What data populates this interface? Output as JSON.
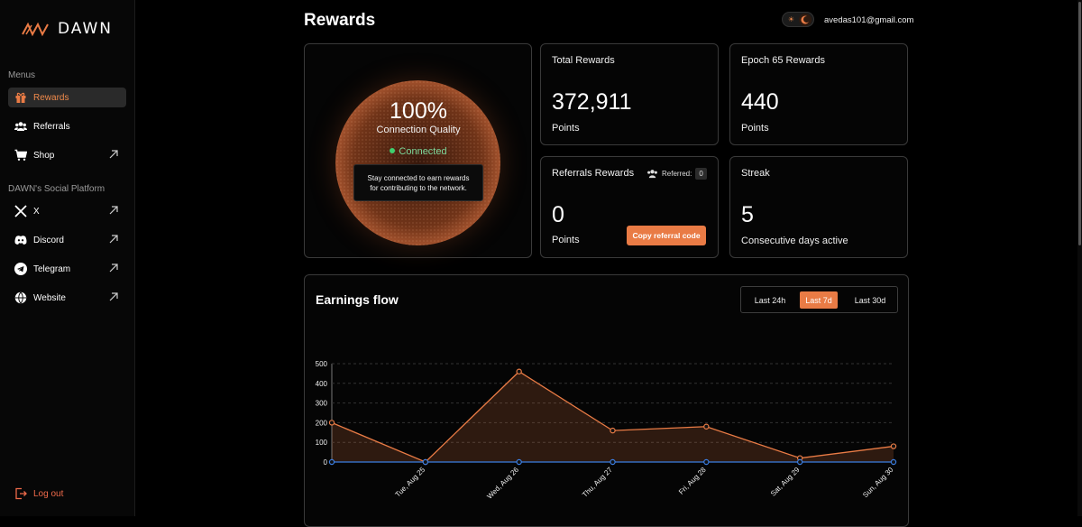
{
  "brand": {
    "name": "DAWN",
    "accent": "#e97b45"
  },
  "sidebar": {
    "menus_heading": "Menus",
    "menu_items": [
      {
        "label": "Rewards",
        "icon": "gift-icon",
        "active": true
      },
      {
        "label": "Referrals",
        "icon": "users-icon"
      },
      {
        "label": "Shop",
        "icon": "cart-icon",
        "external": true
      }
    ],
    "social_heading": "DAWN's Social Platform",
    "social_items": [
      {
        "label": "X",
        "icon": "x-icon"
      },
      {
        "label": "Discord",
        "icon": "discord-icon"
      },
      {
        "label": "Telegram",
        "icon": "telegram-icon"
      },
      {
        "label": "Website",
        "icon": "globe-icon"
      }
    ],
    "logout_label": "Log out"
  },
  "header": {
    "title": "Rewards",
    "email": "avedas101@gmail.com"
  },
  "connection": {
    "percent": "100%",
    "label": "Connection Quality",
    "status": "Connected",
    "tooltip_line1": "Stay connected to earn rewards",
    "tooltip_line2": "for contributing to the network."
  },
  "total_rewards": {
    "title": "Total Rewards",
    "value": "372,911",
    "unit": "Points"
  },
  "epoch_rewards": {
    "title": "Epoch 65 Rewards",
    "value": "440",
    "unit": "Points"
  },
  "referral_rewards": {
    "title": "Referrals Rewards",
    "referred_label": "Referred:",
    "referred_count": "0",
    "value": "0",
    "unit": "Points",
    "copy_label": "Copy referral code"
  },
  "streak": {
    "title": "Streak",
    "value": "5",
    "unit": "Consecutive days active"
  },
  "earnings": {
    "title": "Earnings flow",
    "tabs": [
      "Last 24h",
      "Last 7d",
      "Last 30d"
    ],
    "active_tab": "Last 7d"
  },
  "chart_data": {
    "type": "line",
    "categories": [
      "",
      "Tue, Aug 25",
      "Wed, Aug 26",
      "Thu, Aug 27",
      "Fri, Aug 28",
      "Sat, Aug 29",
      "Sun, Aug 30"
    ],
    "series": [
      {
        "values": [
          200,
          0,
          460,
          160,
          180,
          20,
          80
        ],
        "color": "#e97b45"
      },
      {
        "values": [
          0,
          0,
          0,
          0,
          0,
          0,
          0
        ],
        "color": "#3b7de0"
      }
    ],
    "yticks": [
      0,
      100,
      200,
      300,
      400,
      500
    ],
    "ylim": [
      0,
      500
    ],
    "grid": true
  }
}
